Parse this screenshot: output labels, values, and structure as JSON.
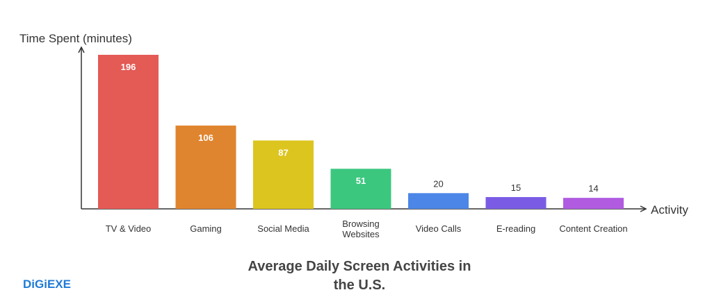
{
  "chart_data": {
    "type": "bar",
    "title": "Average Daily Screen Activities in the U.S.",
    "xlabel": "Activity",
    "ylabel": "Time Spent (minutes)",
    "categories": [
      "TV & Video",
      "Gaming",
      "Social Media",
      "Browsing Websites",
      "Video Calls",
      "E-reading",
      "Content Creation"
    ],
    "category_lines": [
      [
        "TV & Video"
      ],
      [
        "Gaming"
      ],
      [
        "Social Media"
      ],
      [
        "Browsing",
        "Websites"
      ],
      [
        "Video Calls"
      ],
      [
        "E-reading"
      ],
      [
        "Content Creation"
      ]
    ],
    "values": [
      196,
      106,
      87,
      51,
      20,
      15,
      14
    ],
    "colors": [
      "#e45a55",
      "#e0852f",
      "#ddc51f",
      "#3cc77f",
      "#4c86e6",
      "#7a5ce4",
      "#b05be0"
    ],
    "grid": false,
    "title_lines": [
      "Average Daily Screen Activities in",
      "the U.S."
    ]
  },
  "logo": "DiGiEXE"
}
